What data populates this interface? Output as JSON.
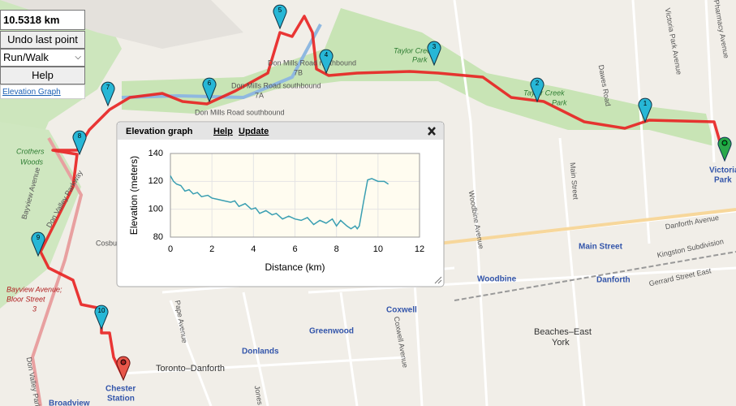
{
  "controls": {
    "distance": "10.5318 km",
    "undo": "Undo last point",
    "mode": "Run/Walk",
    "help": "Help",
    "elevation_link": "Elevation Graph"
  },
  "map": {
    "markers": [
      "1",
      "2",
      "3",
      "4",
      "5",
      "6",
      "7",
      "8",
      "9",
      "10"
    ],
    "labels": [
      "Don Mills Road northbound",
      "7B",
      "Don Mills Road southbound",
      "7A",
      "Don Mills Road southbound",
      "Taylor Creek",
      "Park",
      "Taylor Creek",
      "Park",
      "Crothers",
      "Woods",
      "Don Valley Parkway",
      "Bayview Avenue",
      "Bayview Avenue;",
      "Bloor Street",
      "3",
      "Don Valley Parkway",
      "Main Street",
      "Main Street",
      "Woodbine",
      "Danforth",
      "Coxwell",
      "Greenwood",
      "Donlands",
      "Toronto–Danforth",
      "Chester",
      "Station",
      "Broadview",
      "Beaches–East",
      "York",
      "Danforth Avenue",
      "Gerrard Street East",
      "Kingston Subdivision",
      "Victoria",
      "Park",
      "Victoria Park Avenue",
      "Pharmacy Avenue",
      "Dawes Road",
      "Woodbine Avenue",
      "Coxwell Avenue",
      "Pape Avenue",
      "Cosburn",
      "Jones"
    ]
  },
  "popup": {
    "title": "Elevation graph",
    "help": "Help",
    "update": "Update"
  },
  "chart_data": {
    "type": "line",
    "xlabel": "Distance (km)",
    "ylabel": "Elevation (meters)",
    "x": [
      0,
      0.15,
      0.3,
      0.5,
      0.7,
      0.9,
      1.1,
      1.3,
      1.5,
      1.8,
      2.0,
      2.3,
      2.6,
      2.9,
      3.1,
      3.3,
      3.6,
      3.9,
      4.1,
      4.3,
      4.6,
      4.9,
      5.1,
      5.4,
      5.7,
      6.0,
      6.3,
      6.6,
      6.9,
      7.2,
      7.5,
      7.8,
      8.0,
      8.2,
      8.5,
      8.7,
      8.9,
      9.0,
      9.1,
      9.3,
      9.5,
      9.7,
      10.0,
      10.3,
      10.5
    ],
    "values": [
      124,
      120,
      118,
      117,
      113,
      114,
      111,
      112,
      109,
      110,
      108,
      107,
      106,
      105,
      106,
      102,
      104,
      100,
      101,
      97,
      99,
      96,
      97,
      93,
      95,
      93,
      92,
      94,
      89,
      92,
      90,
      93,
      88,
      92,
      88,
      86,
      88,
      86,
      88,
      105,
      121,
      122,
      120,
      120,
      118
    ],
    "color": "#3a9fb2",
    "xlim": [
      0,
      12
    ],
    "ylim": [
      80,
      140
    ],
    "xticks": [
      0,
      2,
      4,
      6,
      8,
      10,
      12
    ],
    "yticks": [
      80,
      100,
      120,
      140
    ],
    "grid": true
  }
}
